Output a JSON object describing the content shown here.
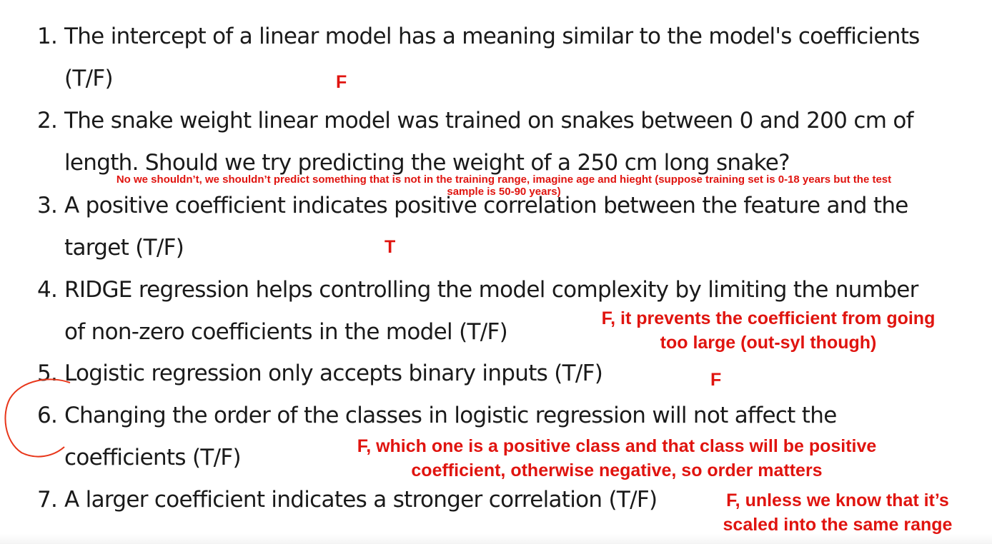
{
  "questions": [
    {
      "num": "1.",
      "lines": [
        "The intercept of a linear model has a meaning similar to the model's coefficients",
        "(T/F)"
      ]
    },
    {
      "num": "2.",
      "lines": [
        "The snake weight linear model was trained on snakes between 0 and 200 cm of",
        "length. Should we try predicting the weight of a 250 cm long snake?"
      ]
    },
    {
      "num": "3.",
      "lines": [
        "A positive coefficient indicates positive correlation between the feature and the",
        "target (T/F)"
      ]
    },
    {
      "num": "4.",
      "lines": [
        "RIDGE regression helps controlling the model complexity by limiting the number",
        "of non-zero coefficients in the model (T/F)"
      ]
    },
    {
      "num": "5.",
      "lines": [
        "Logistic regression only accepts binary inputs (T/F)"
      ]
    },
    {
      "num": "6.",
      "lines": [
        "Changing the order of the classes in logistic regression will not affect the",
        "coefficients (T/F)"
      ]
    },
    {
      "num": "7.",
      "lines": [
        "A larger coefficient indicates a stronger correlation (T/F)"
      ]
    }
  ],
  "answers": {
    "a1": "F",
    "a2": [
      "No we shouldn’t, we shouldn’t predict something that is not in the training range, imagine age and hieght (suppose training set is 0-18 years but the test",
      "sample is 50-90 years)"
    ],
    "a3": "T",
    "a4": [
      "F, it prevents the coefficient from going",
      "too large (out-syl though)"
    ],
    "a5": "F",
    "a6": [
      "F, which one is a positive class and that class will be positive",
      "coefficient, otherwise negative, so order matters"
    ],
    "a7": [
      "F, unless we know that it’s",
      "scaled into the same range"
    ]
  },
  "colors": {
    "text": "#1a1a1a",
    "annotation": "#e0140f",
    "ink_circle": "#e8361a"
  }
}
